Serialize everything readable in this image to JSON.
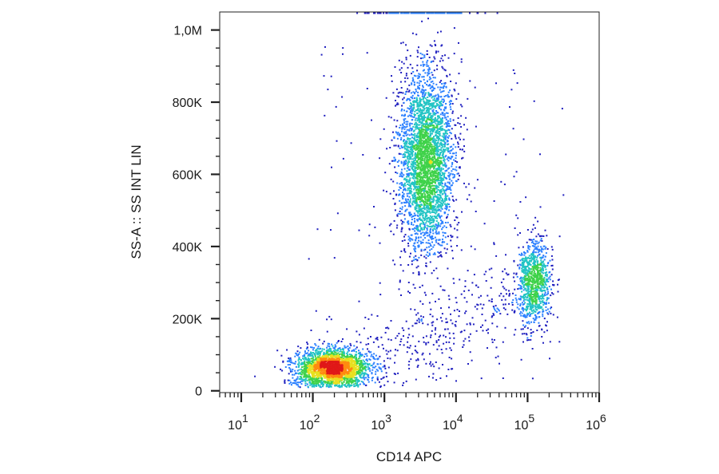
{
  "chart_data": {
    "type": "scatter",
    "subtype": "flow-cytometry density dot plot",
    "xlabel": "CD14 APC",
    "ylabel": "SS-A :: SS INT LIN",
    "x_scale": "log",
    "xlim": [
      5,
      1000000
    ],
    "ylim": [
      -5000,
      1050000
    ],
    "x_ticks": [
      {
        "value": 10,
        "base": "10",
        "exp": "1"
      },
      {
        "value": 100,
        "base": "10",
        "exp": "2"
      },
      {
        "value": 1000,
        "base": "10",
        "exp": "3"
      },
      {
        "value": 10000,
        "base": "10",
        "exp": "4"
      },
      {
        "value": 100000,
        "base": "10",
        "exp": "5"
      },
      {
        "value": 1000000,
        "base": "10",
        "exp": "6"
      }
    ],
    "y_ticks": [
      {
        "value": 0,
        "label": "0"
      },
      {
        "value": 200000,
        "label": "200K"
      },
      {
        "value": 400000,
        "label": "400K"
      },
      {
        "value": 600000,
        "label": "600K"
      },
      {
        "value": 800000,
        "label": "800K"
      },
      {
        "value": 1000000,
        "label": "1,0M"
      }
    ],
    "color_scale": [
      "#1f1fbf",
      "#2a7fff",
      "#22c4c4",
      "#3fd24a",
      "#e8e020",
      "#ff8a10",
      "#e01818"
    ],
    "populations": [
      {
        "x_median": 180,
        "y_median": 65000,
        "n": 2400,
        "density": "high"
      },
      {
        "x_median": 3800,
        "y_median": 640000,
        "n": 3300,
        "density": "medium"
      },
      {
        "x_median": 120000,
        "y_median": 300000,
        "n": 950,
        "density": "low"
      }
    ]
  }
}
